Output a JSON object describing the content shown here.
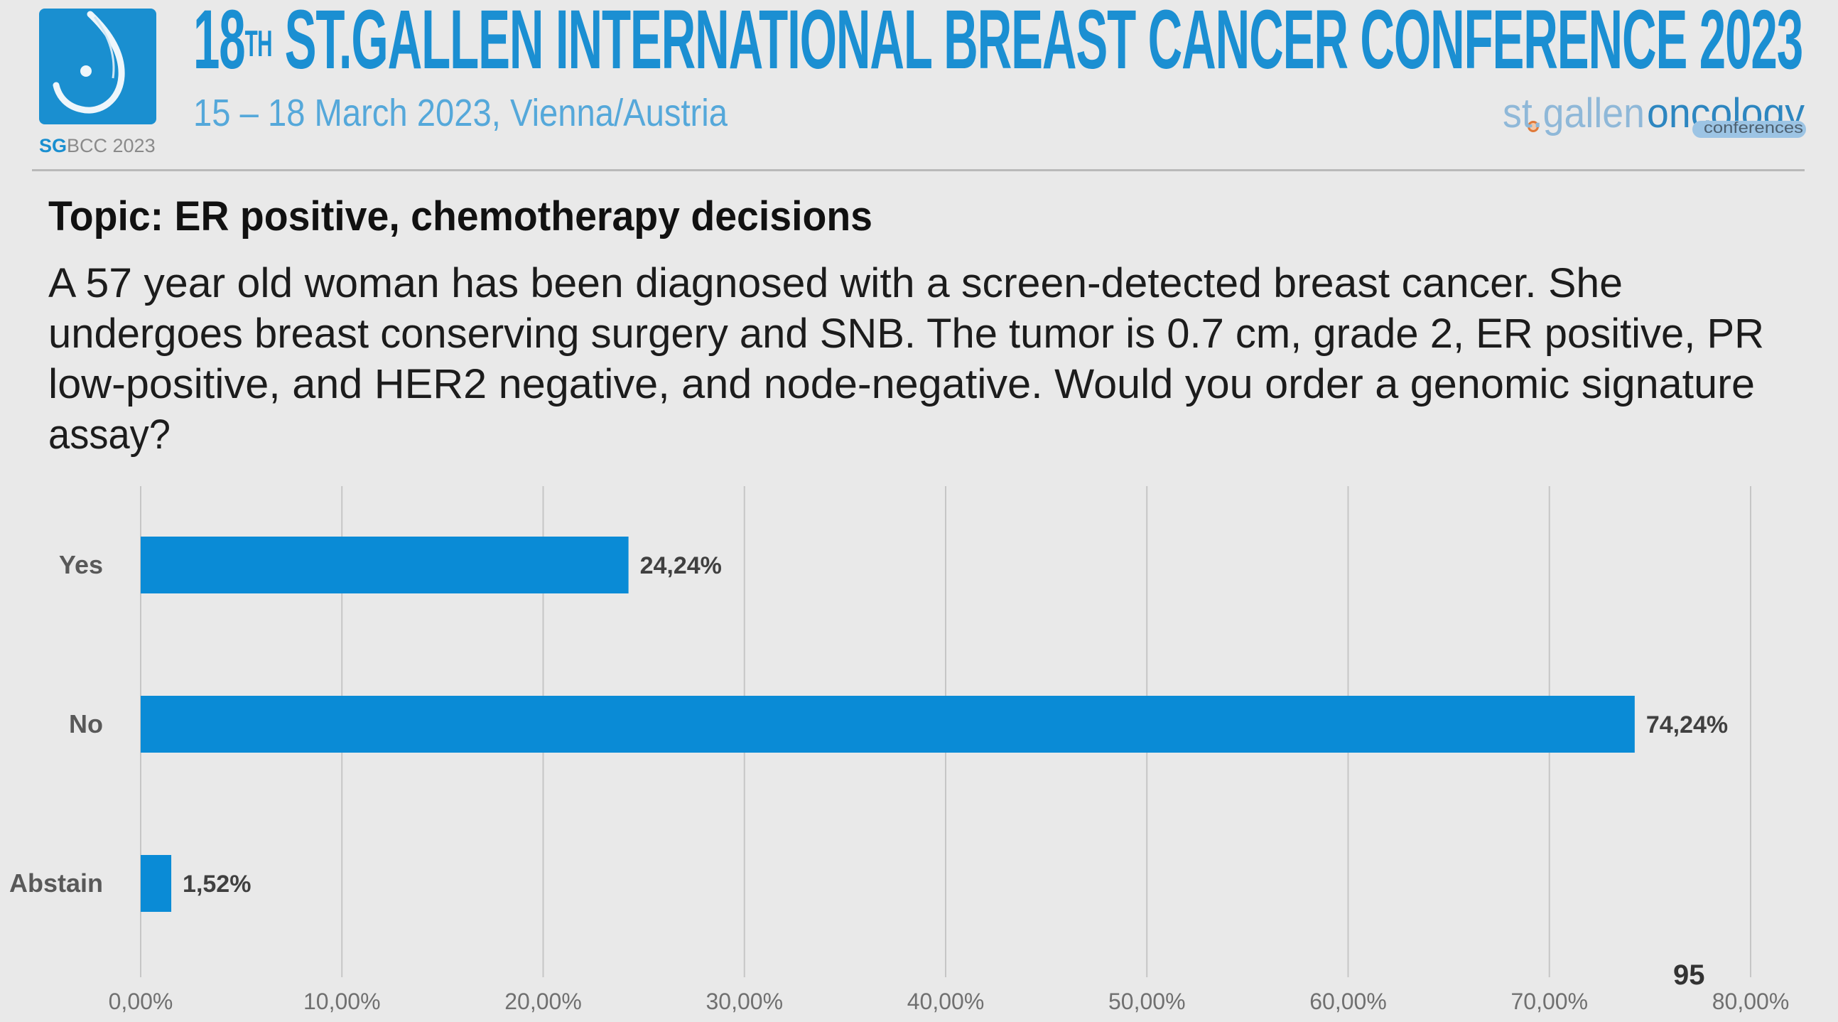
{
  "header": {
    "title_number": "18",
    "title_suffix": "TH",
    "title_main": "ST.GALLEN INTERNATIONAL BREAST CANCER CONFERENCE 2023",
    "subtitle": "15 – 18 March 2023, Vienna/Austria",
    "logo_caption_bold": "SG",
    "logo_caption_rest": "BCC 2023",
    "org_logo_part1": "st.gallen",
    "org_logo_part2": "oncology",
    "org_logo_part3": "conferences"
  },
  "slide": {
    "topic": "Topic: ER positive, chemotherapy decisions",
    "question_lines": [
      "A 57 year old woman has been diagnosed with a screen-detected breast cancer. She",
      "undergoes breast conserving surgery and SNB. The tumor is 0.7 cm, grade 2, ER positive, PR",
      "low-positive, and HER2 negative, and node-negative. Would you order a genomic signature",
      "assay?"
    ],
    "slide_number": "95"
  },
  "colors": {
    "brand_blue": "#1a8fd0",
    "bar": "#0a8bd6",
    "background": "#e9e9e9"
  },
  "chart_data": {
    "type": "bar",
    "orientation": "horizontal",
    "title": "",
    "categories": [
      "Yes",
      "No",
      "Abstain"
    ],
    "values": [
      24.24,
      74.24,
      1.52
    ],
    "value_labels": [
      "24,24%",
      "74,24%",
      "1,52%"
    ],
    "xlabel": "",
    "ylabel": "",
    "xlim": [
      0,
      80
    ],
    "xticks": [
      0,
      10,
      20,
      30,
      40,
      50,
      60,
      70,
      80
    ],
    "xtick_labels": [
      "0,00%",
      "10,00%",
      "20,00%",
      "30,00%",
      "40,00%",
      "50,00%",
      "60,00%",
      "70,00%",
      "80,00%"
    ],
    "grid": "vertical",
    "legend": "none"
  }
}
